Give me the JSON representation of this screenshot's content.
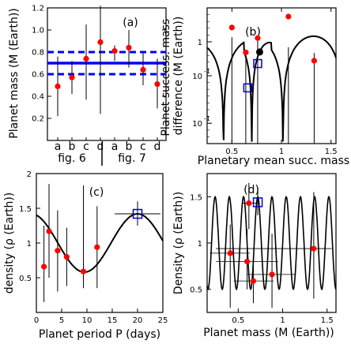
{
  "chart_data": [
    {
      "id": "a",
      "type": "scatter",
      "panel_label": "(a)",
      "ylabel": "Planet mass (M (Earth))",
      "ylim": [
        0.0,
        1.2
      ],
      "yticks": [
        "0.2",
        "0.4",
        "0.6",
        "0.8",
        "1.0",
        "1.2"
      ],
      "yticks_val": [
        0.2,
        0.4,
        0.6,
        0.8,
        1.0,
        1.2
      ],
      "categories": [
        "a",
        "b",
        "c",
        "d",
        "a",
        "b",
        "c",
        "d"
      ],
      "group_labels": [
        "fig. 6",
        "fig. 7"
      ],
      "points": [
        {
          "y": 0.49,
          "err": [
            0.22,
            0.76
          ]
        },
        {
          "y": 0.57,
          "err": [
            0.42,
            0.72
          ]
        },
        {
          "y": 0.74,
          "err": [
            0.37,
            1.05
          ]
        },
        {
          "y": 0.89,
          "err": [
            0.24,
            1.22
          ]
        },
        {
          "y": 0.81,
          "err": [
            0.72,
            0.86
          ]
        },
        {
          "y": 0.84,
          "err": [
            0.66,
            1.0
          ]
        },
        {
          "y": 0.64,
          "err": [
            0.5,
            0.79
          ]
        },
        {
          "y": 0.51,
          "err": [
            0.29,
            0.74
          ]
        }
      ],
      "mean_line": 0.7,
      "band": [
        0.6,
        0.8
      ]
    },
    {
      "id": "b",
      "type": "scatter",
      "panel_label": "(b)",
      "ylabel": "Planet success. mass difference (M (Earth))",
      "xlabel": "Planetary mean succ. mass",
      "scale_y": "log",
      "xlim": [
        0.25,
        1.55
      ],
      "ylim_log": [
        -1.5,
        0.5
      ],
      "xticks": [
        "0.5",
        "1",
        "1.5"
      ],
      "xticks_val": [
        0.5,
        1.0,
        1.5
      ],
      "yticks": [
        "1",
        "10",
        "10"
      ],
      "yticks_val": [
        0.0,
        -0.5,
        -1.2
      ],
      "points": [
        {
          "x": 0.5,
          "y": 0.2,
          "err": [
            0.02,
            0.65
          ]
        },
        {
          "x": 0.64,
          "y": 0.06,
          "err": [
            0.03,
            0.3
          ]
        },
        {
          "x": 0.76,
          "y": 0.12,
          "err": [
            0.02,
            0.6
          ]
        },
        {
          "x": 1.07,
          "y": 0.34,
          "err": [
            0.02,
            0.4
          ]
        },
        {
          "x": 1.33,
          "y": 0.04,
          "err": [
            0.02,
            0.3
          ]
        }
      ],
      "black_point": {
        "x": 0.78,
        "y": 0.2
      },
      "squares": [
        {
          "x": 0.66,
          "y": 0.04
        },
        {
          "x": 0.76,
          "y": 0.13
        }
      ]
    },
    {
      "id": "c",
      "type": "scatter",
      "panel_label": "(c)",
      "ylabel": "density (ρ (Earth))",
      "xlabel": "Planet period P (days)",
      "xlim": [
        0,
        25
      ],
      "ylim": [
        0,
        2
      ],
      "xticks": [
        "0",
        "5",
        "10",
        "15",
        "20",
        "25"
      ],
      "xticks_val": [
        0,
        5,
        10,
        15,
        20,
        25
      ],
      "yticks": [
        "0.5",
        "1",
        "1.5",
        "2"
      ],
      "yticks_val": [
        0.5,
        1.0,
        1.5,
        2.0
      ],
      "points": [
        {
          "x": 1.5,
          "y": 0.66,
          "err": [
            0.15,
            1.25
          ]
        },
        {
          "x": 2.5,
          "y": 1.17,
          "err": [
            0.5,
            1.85
          ]
        },
        {
          "x": 4.2,
          "y": 0.89,
          "err": [
            0.3,
            1.47
          ]
        },
        {
          "x": 6.0,
          "y": 0.8,
          "err": [
            0.38,
            1.22
          ]
        },
        {
          "x": 9.3,
          "y": 0.59,
          "err": [
            0.35,
            1.83
          ]
        },
        {
          "x": 12.0,
          "y": 0.94,
          "err": [
            0.35,
            1.53
          ]
        }
      ],
      "square": {
        "x": 20.0,
        "y": 1.42,
        "err": [
          1.25,
          1.6
        ],
        "xerr": [
          15.5,
          24.5
        ]
      }
    },
    {
      "id": "d",
      "type": "scatter",
      "panel_label": "(d)",
      "ylabel": "Density (ρ (Earth))",
      "xlabel": "Planet mass (M (Earth))",
      "xlim": [
        0.15,
        1.6
      ],
      "ylim": [
        0.25,
        1.75
      ],
      "xticks": [
        "0.5",
        "1",
        "1.5"
      ],
      "xticks_val": [
        0.5,
        1.0,
        1.5
      ],
      "yticks": [
        "0.5",
        "1",
        "1.5"
      ],
      "yticks_val": [
        0.5,
        1.0,
        1.5
      ],
      "points": [
        {
          "x": 0.41,
          "y": 0.89,
          "err": [
            0.3,
            1.2
          ],
          "xerr": [
            0.18,
            0.63
          ]
        },
        {
          "x": 0.6,
          "y": 0.8,
          "err": [
            0.5,
            1.15
          ],
          "xerr": [
            0.25,
            0.95
          ]
        },
        {
          "x": 0.62,
          "y": 1.43,
          "err": [
            1.15,
            1.65
          ],
          "xerr": [
            0.55,
            0.72
          ]
        },
        {
          "x": 0.67,
          "y": 0.59,
          "err": [
            0.35,
            0.85
          ],
          "xerr": [
            0.45,
            0.9
          ]
        },
        {
          "x": 0.88,
          "y": 0.66,
          "err": [
            0.3,
            1.1
          ],
          "xerr": [
            0.6,
            1.15
          ]
        },
        {
          "x": 1.35,
          "y": 0.94,
          "err": [
            0.4,
            1.55
          ],
          "xerr": [
            0.25,
            1.55
          ]
        }
      ],
      "square": {
        "x": 0.72,
        "y": 1.44,
        "err": [
          1.3,
          1.6
        ],
        "xerr": [
          0.62,
          0.82
        ]
      }
    }
  ],
  "colors": {
    "marker": "#ff0000",
    "square": "#0000cc",
    "band": "#0000ff",
    "curve": "#000000"
  }
}
